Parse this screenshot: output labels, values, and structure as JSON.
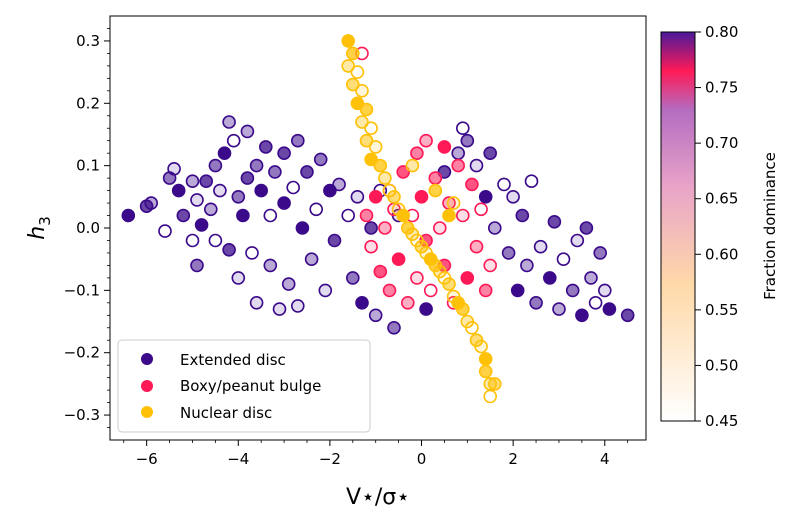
{
  "chart_data": {
    "type": "scatter",
    "title": "",
    "xlabel": "V⋆/σ⋆",
    "ylabel": "h3",
    "xlim": [
      -6.8,
      4.9
    ],
    "ylim": [
      -0.34,
      0.34
    ],
    "xticks": [
      -6,
      -4,
      -2,
      0,
      2,
      4
    ],
    "xtick_labels": [
      "−6",
      "−4",
      "−2",
      "0",
      "2",
      "4"
    ],
    "yticks": [
      -0.3,
      -0.2,
      -0.1,
      0.0,
      0.1,
      0.2,
      0.3
    ],
    "ytick_labels": [
      "−0.3",
      "−0.2",
      "−0.1",
      "0.0",
      "0.1",
      "0.2",
      "0.3"
    ],
    "legend_location": "lower-left",
    "series": [
      {
        "name": "Extended disc",
        "color": "#3a0a8a",
        "points": [
          [
            -6.4,
            0.02
          ],
          [
            -6.0,
            0.035
          ],
          [
            -5.9,
            0.04
          ],
          [
            -5.6,
            -0.005
          ],
          [
            -5.5,
            0.08
          ],
          [
            -5.4,
            0.095
          ],
          [
            -5.3,
            0.06
          ],
          [
            -5.2,
            0.02
          ],
          [
            -5.0,
            0.075
          ],
          [
            -5.0,
            -0.02
          ],
          [
            -4.9,
            -0.06
          ],
          [
            -4.9,
            0.045
          ],
          [
            -4.8,
            0.005
          ],
          [
            -4.7,
            0.075
          ],
          [
            -4.6,
            0.03
          ],
          [
            -4.5,
            -0.02
          ],
          [
            -4.5,
            0.1
          ],
          [
            -4.4,
            0.06
          ],
          [
            -4.3,
            0.12
          ],
          [
            -4.2,
            -0.035
          ],
          [
            -4.2,
            0.17
          ],
          [
            -4.1,
            0.14
          ],
          [
            -4.0,
            0.05
          ],
          [
            -4.0,
            -0.08
          ],
          [
            -3.9,
            0.02
          ],
          [
            -3.8,
            0.08
          ],
          [
            -3.8,
            0.155
          ],
          [
            -3.7,
            -0.04
          ],
          [
            -3.6,
            0.1
          ],
          [
            -3.6,
            -0.12
          ],
          [
            -3.5,
            0.06
          ],
          [
            -3.4,
            0.13
          ],
          [
            -3.3,
            -0.06
          ],
          [
            -3.3,
            0.02
          ],
          [
            -3.2,
            0.09
          ],
          [
            -3.1,
            -0.13
          ],
          [
            -3.0,
            0.04
          ],
          [
            -3.0,
            0.12
          ],
          [
            -2.9,
            -0.09
          ],
          [
            -2.8,
            0.065
          ],
          [
            -2.7,
            0.14
          ],
          [
            -2.7,
            -0.125
          ],
          [
            -2.6,
            0.0
          ],
          [
            -2.5,
            0.09
          ],
          [
            -2.4,
            -0.05
          ],
          [
            -2.3,
            0.03
          ],
          [
            -2.2,
            0.11
          ],
          [
            -2.1,
            -0.1
          ],
          [
            -2.0,
            0.06
          ],
          [
            -1.9,
            -0.02
          ],
          [
            -1.8,
            0.07
          ],
          [
            -1.6,
            0.02
          ],
          [
            -1.5,
            -0.08
          ],
          [
            -1.4,
            0.05
          ],
          [
            -1.3,
            -0.12
          ],
          [
            -1.1,
            0.0
          ],
          [
            -1.0,
            -0.14
          ],
          [
            -0.9,
            0.06
          ],
          [
            -0.6,
            -0.16
          ],
          [
            -0.5,
            0.02
          ],
          [
            0.1,
            -0.13
          ],
          [
            0.5,
            0.09
          ],
          [
            0.8,
            0.12
          ],
          [
            0.9,
            0.16
          ],
          [
            1.0,
            0.14
          ],
          [
            1.2,
            0.1
          ],
          [
            1.4,
            0.05
          ],
          [
            1.5,
            0.12
          ],
          [
            1.6,
            0.0
          ],
          [
            1.8,
            0.07
          ],
          [
            1.9,
            -0.04
          ],
          [
            2.0,
            0.05
          ],
          [
            2.1,
            -0.1
          ],
          [
            2.2,
            0.02
          ],
          [
            2.3,
            -0.06
          ],
          [
            2.4,
            0.075
          ],
          [
            2.5,
            -0.12
          ],
          [
            2.6,
            -0.03
          ],
          [
            2.8,
            -0.08
          ],
          [
            2.9,
            0.01
          ],
          [
            3.0,
            -0.13
          ],
          [
            3.1,
            -0.05
          ],
          [
            3.3,
            -0.1
          ],
          [
            3.4,
            -0.02
          ],
          [
            3.5,
            -0.14
          ],
          [
            3.6,
            0.0
          ],
          [
            3.7,
            -0.08
          ],
          [
            3.8,
            -0.12
          ],
          [
            3.9,
            -0.04
          ],
          [
            4.0,
            -0.1
          ],
          [
            4.1,
            -0.13
          ],
          [
            4.5,
            -0.14
          ]
        ]
      },
      {
        "name": "Boxy/peanut bulge",
        "color": "#ff1a57",
        "points": [
          [
            -1.3,
            0.28
          ],
          [
            -1.2,
            0.02
          ],
          [
            -1.1,
            -0.03
          ],
          [
            -1.0,
            0.05
          ],
          [
            -0.9,
            -0.07
          ],
          [
            -0.8,
            0.0
          ],
          [
            -0.7,
            0.06
          ],
          [
            -0.7,
            -0.1
          ],
          [
            -0.6,
            0.03
          ],
          [
            -0.5,
            -0.05
          ],
          [
            -0.4,
            0.09
          ],
          [
            -0.3,
            -0.12
          ],
          [
            -0.2,
            0.02
          ],
          [
            -0.1,
            0.12
          ],
          [
            -0.1,
            -0.08
          ],
          [
            0.0,
            0.05
          ],
          [
            0.1,
            -0.02
          ],
          [
            0.1,
            0.14
          ],
          [
            0.2,
            -0.1
          ],
          [
            0.3,
            0.08
          ],
          [
            0.4,
            0.0
          ],
          [
            0.5,
            0.13
          ],
          [
            0.5,
            -0.06
          ],
          [
            0.6,
            0.04
          ],
          [
            0.7,
            -0.12
          ],
          [
            0.8,
            0.1
          ],
          [
            0.9,
            0.02
          ],
          [
            1.0,
            -0.08
          ],
          [
            1.1,
            0.07
          ],
          [
            1.2,
            -0.03
          ],
          [
            1.3,
            0.03
          ],
          [
            1.4,
            -0.1
          ],
          [
            1.5,
            -0.06
          ]
        ]
      },
      {
        "name": "Nuclear disc",
        "color": "#ffc107",
        "points": [
          [
            -1.6,
            0.3
          ],
          [
            -1.5,
            0.28
          ],
          [
            -1.6,
            0.26
          ],
          [
            -1.4,
            0.25
          ],
          [
            -1.5,
            0.23
          ],
          [
            -1.3,
            0.22
          ],
          [
            -1.4,
            0.2
          ],
          [
            -1.2,
            0.19
          ],
          [
            -1.3,
            0.17
          ],
          [
            -1.1,
            0.16
          ],
          [
            -1.2,
            0.14
          ],
          [
            -1.0,
            0.13
          ],
          [
            -1.1,
            0.11
          ],
          [
            -0.9,
            0.1
          ],
          [
            -0.8,
            0.08
          ],
          [
            -0.7,
            0.06
          ],
          [
            -0.6,
            0.05
          ],
          [
            -0.5,
            0.03
          ],
          [
            -0.4,
            0.02
          ],
          [
            -0.3,
            0.0
          ],
          [
            -0.2,
            -0.01
          ],
          [
            -0.1,
            -0.02
          ],
          [
            0.0,
            -0.03
          ],
          [
            0.1,
            -0.04
          ],
          [
            0.2,
            -0.05
          ],
          [
            0.3,
            -0.06
          ],
          [
            0.4,
            -0.07
          ],
          [
            0.5,
            -0.08
          ],
          [
            0.6,
            -0.09
          ],
          [
            0.7,
            -0.11
          ],
          [
            0.8,
            -0.12
          ],
          [
            0.9,
            -0.13
          ],
          [
            1.0,
            -0.15
          ],
          [
            1.1,
            -0.16
          ],
          [
            1.2,
            -0.18
          ],
          [
            1.3,
            -0.19
          ],
          [
            1.4,
            -0.21
          ],
          [
            1.4,
            -0.23
          ],
          [
            1.5,
            -0.25
          ],
          [
            1.5,
            -0.27
          ],
          [
            1.6,
            -0.25
          ],
          [
            0.7,
            0.04
          ],
          [
            0.6,
            0.02
          ],
          [
            0.3,
            0.06
          ],
          [
            -0.2,
            0.1
          ]
        ]
      }
    ],
    "colorbar": {
      "label": "Fraction dominance",
      "range": [
        0.45,
        0.8
      ],
      "ticks": [
        0.45,
        0.5,
        0.55,
        0.6,
        0.65,
        0.7,
        0.75,
        0.8
      ],
      "tick_labels": [
        "0.45",
        "0.50",
        "0.55",
        "0.60",
        "0.65",
        "0.70",
        "0.75",
        "0.80"
      ]
    }
  }
}
